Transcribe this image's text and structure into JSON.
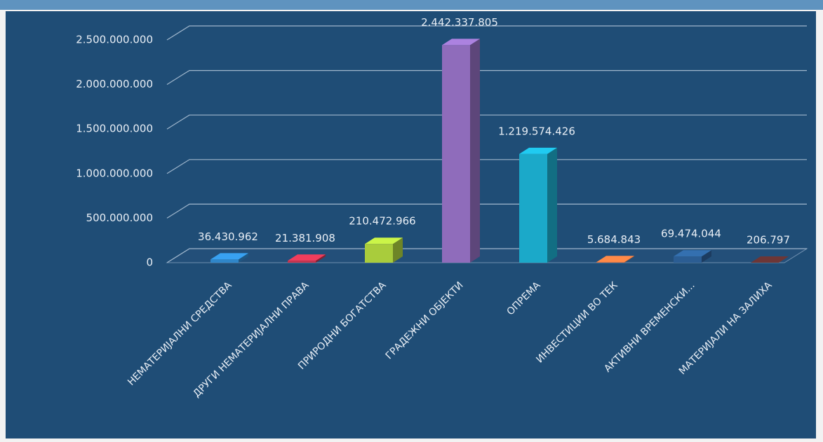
{
  "chart_data": {
    "type": "bar3d",
    "categories": [
      "НЕМАТЕРИЈАЛНИ СРЕДСТВА",
      "ДРУГИ НЕМАТЕРИЈАЛНИ ПРАВА",
      "ПРИРОДНИ БОГАТСТВА",
      "ГРАДЕЖНИ ОБЈЕКТИ",
      "ОПРЕМА",
      "ИНВЕСТИЦИИ ВО ТЕК",
      "АКТИВНИ ВРЕМЕНСКИ...",
      "МАТЕРИЈАЛИ НА ЗАЛИХА"
    ],
    "values": [
      36430962,
      21381908,
      210472966,
      2442337805,
      1219574426,
      5684843,
      69474044,
      206797
    ],
    "value_labels": [
      "36.430.962",
      "21.381.908",
      "210.472.966",
      "2.442.337.805",
      "1.219.574.426",
      "5.684.843",
      "69.474.044",
      "206.797"
    ],
    "colors": [
      "#2f86c9",
      "#c8334d",
      "#a9cc3c",
      "#8f6cbb",
      "#1ba9c9",
      "#e9733c",
      "#2b5d93",
      "#5b2d2d"
    ],
    "ylim": [
      0,
      2500000000
    ],
    "yticks": [
      0,
      {
        "value": 500000000,
        "label": "500.000.000"
      },
      {
        "value": 1000000000,
        "label": "1.000.000.000"
      },
      {
        "value": 1500000000,
        "label": "1.500.000.000"
      },
      {
        "value": 2000000000,
        "label": "2.000.000.000"
      },
      {
        "value": 2500000000,
        "label": "2.500.000.000"
      }
    ],
    "grid": true
  }
}
